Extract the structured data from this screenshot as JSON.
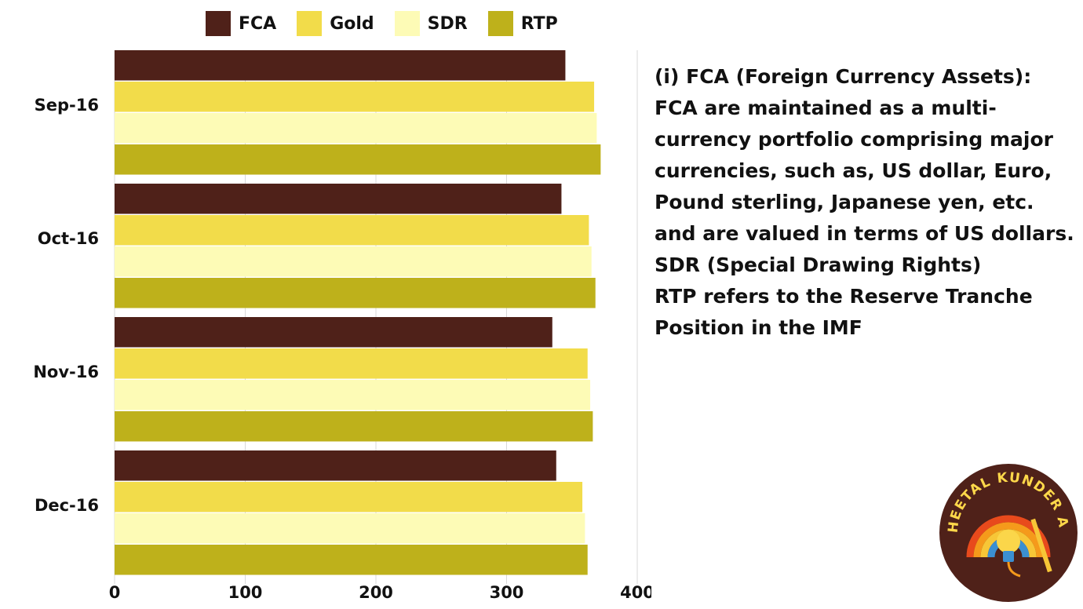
{
  "chart_data": {
    "type": "bar",
    "orientation": "horizontal",
    "categories": [
      "Sep-16",
      "Oct-16",
      "Nov-16",
      "Dec-16"
    ],
    "series": [
      {
        "name": "FCA",
        "color": "#4f2119",
        "values": [
          345,
          342,
          335,
          338
        ]
      },
      {
        "name": "Gold",
        "color": "#f2dc4a",
        "values": [
          367,
          363,
          362,
          358
        ]
      },
      {
        "name": "SDR",
        "color": "#fdfbb6",
        "values": [
          369,
          365,
          364,
          360
        ]
      },
      {
        "name": "RTP",
        "color": "#beb11b",
        "values": [
          372,
          368,
          366,
          362
        ]
      }
    ],
    "xlim": [
      0,
      400
    ],
    "xticks": [
      "0",
      "100",
      "200",
      "300",
      "400"
    ],
    "grid": true,
    "legend_position": "top"
  },
  "notes": {
    "line1": "(i) FCA (Foreign Currency Assets): FCA are maintained as a multi-currency portfolio comprising major currencies, such as, US dollar, Euro, Pound sterling, Japanese yen, etc. and are valued in terms of US dollars.",
    "line2": "SDR (Special Drawing Rights)",
    "line3": "RTP refers to the Reserve Tranche Position in the IMF"
  },
  "logo": {
    "text": "PROF. SHEETAL KUNDER ACADEMY",
    "bg_color": "#4f2119"
  }
}
